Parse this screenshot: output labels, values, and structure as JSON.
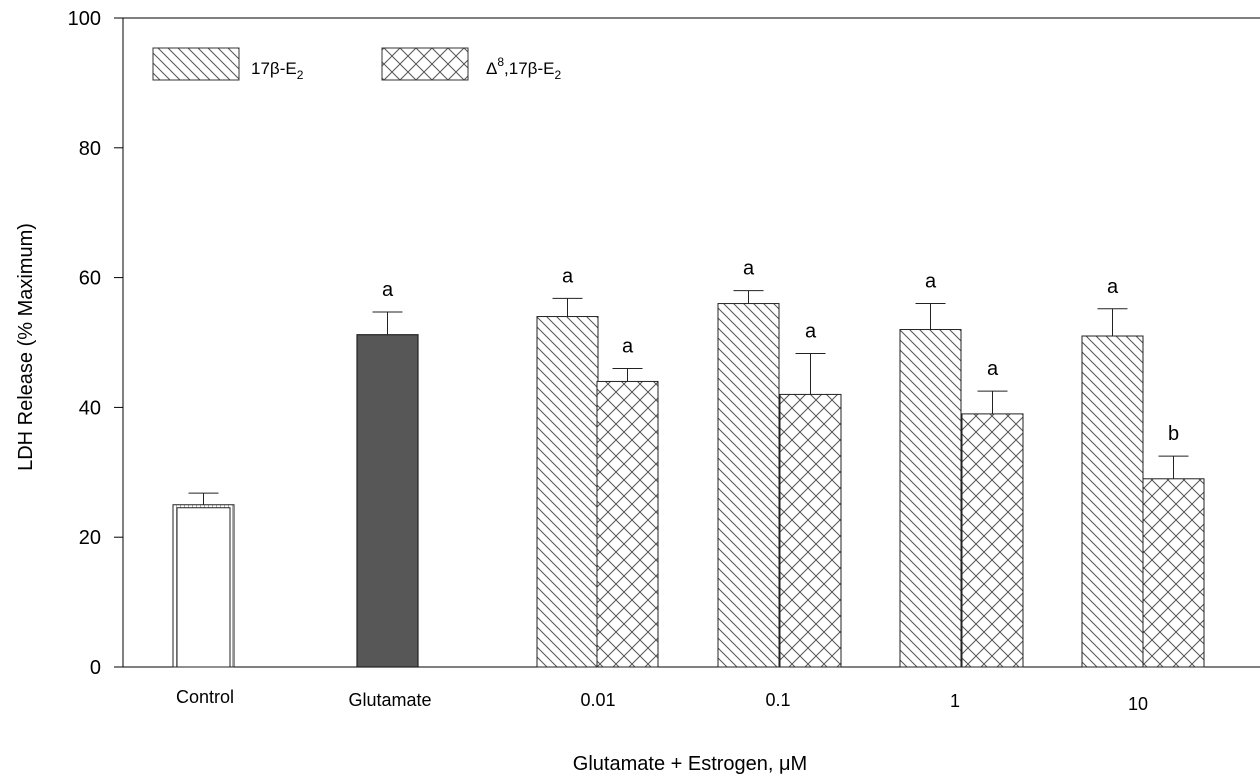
{
  "chart_data": {
    "type": "bar",
    "title": "",
    "xlabel": "Glutamate + Estrogen, μM",
    "ylabel": "LDH Release (% Maximum)",
    "ylim": [
      0,
      100
    ],
    "y_ticks": [
      "0",
      "20",
      "40",
      "60",
      "80",
      "100"
    ],
    "grid": false,
    "legend_position": "top-left",
    "legend": [
      {
        "name": "17β-E",
        "subscript": "2",
        "pattern": "diagonal"
      },
      {
        "name": "Δ",
        "superscript": "8",
        "name_suffix": ",17β-E",
        "subscript": "2",
        "pattern": "crosshatch"
      }
    ],
    "groups": [
      {
        "label": "Control",
        "bars": [
          {
            "series": "Control",
            "value": 25,
            "error": 1.8,
            "sig": "",
            "fill": "#ffffff",
            "pattern": "vertical"
          }
        ]
      },
      {
        "label": "Glutamate",
        "bars": [
          {
            "series": "Glutamate",
            "value": 51.2,
            "error": 3.5,
            "sig": "a",
            "fill": "#575757",
            "pattern": "solid"
          }
        ]
      },
      {
        "label": "0.01",
        "bars": [
          {
            "series": "17β-E2",
            "value": 54,
            "error": 2.8,
            "sig": "a",
            "pattern": "diagonal"
          },
          {
            "series": "Δ8,17β-E2",
            "value": 44,
            "error": 2.0,
            "sig": "a",
            "pattern": "crosshatch"
          }
        ]
      },
      {
        "label": "0.1",
        "bars": [
          {
            "series": "17β-E2",
            "value": 56,
            "error": 2.0,
            "sig": "a",
            "pattern": "diagonal"
          },
          {
            "series": "Δ8,17β-E2",
            "value": 42,
            "error": 6.3,
            "sig": "a",
            "pattern": "crosshatch"
          }
        ]
      },
      {
        "label": "1",
        "bars": [
          {
            "series": "17β-E2",
            "value": 52,
            "error": 4.0,
            "sig": "a",
            "pattern": "diagonal"
          },
          {
            "series": "Δ8,17β-E2",
            "value": 39,
            "error": 3.5,
            "sig": "a",
            "pattern": "crosshatch"
          }
        ]
      },
      {
        "label": "10",
        "bars": [
          {
            "series": "17β-E2",
            "value": 51,
            "error": 4.2,
            "sig": "a",
            "pattern": "diagonal"
          },
          {
            "series": "Δ8,17β-E2",
            "value": 29,
            "error": 3.5,
            "sig": "b",
            "pattern": "crosshatch"
          }
        ]
      }
    ]
  }
}
